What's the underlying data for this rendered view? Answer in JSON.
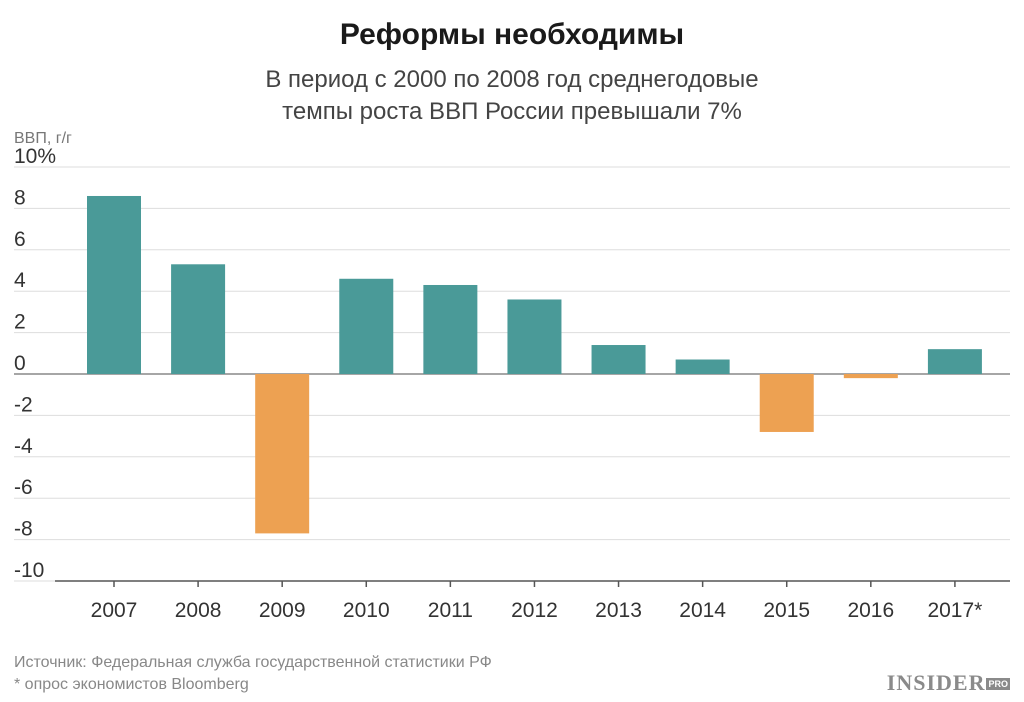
{
  "chart_data": {
    "type": "bar",
    "title": "Реформы необходимы",
    "subtitle_lines": [
      "В период с 2000 по 2008 год среднегодовые",
      "темпы роста ВВП России превышали 7%"
    ],
    "ylabel": "ВВП, г/г",
    "ylim": [
      -10,
      10
    ],
    "yticks": [
      10,
      8,
      6,
      4,
      2,
      0,
      -2,
      -4,
      -6,
      -8,
      -10
    ],
    "ytick_labels": [
      "10%",
      "8",
      "6",
      "4",
      "2",
      "0",
      "-2",
      "-4",
      "-6",
      "-8",
      "-10"
    ],
    "categories": [
      "2007",
      "2008",
      "2009",
      "2010",
      "2011",
      "2012",
      "2013",
      "2014",
      "2015",
      "2016",
      "2017*"
    ],
    "values": [
      8.6,
      5.3,
      -7.7,
      4.6,
      4.3,
      3.6,
      1.4,
      0.7,
      -2.8,
      -0.2,
      1.2
    ],
    "grid": true,
    "colors": {
      "positive": "#4a9a98",
      "negative": "#eda152",
      "grid": "#dddddd",
      "zero": "#888888"
    }
  },
  "footer": {
    "source": "Источник: Федеральная служба государственной статистики РФ",
    "note": "* опрос экономистов Bloomberg"
  },
  "logo": {
    "main": "INSIDER",
    "badge": "PRO"
  }
}
